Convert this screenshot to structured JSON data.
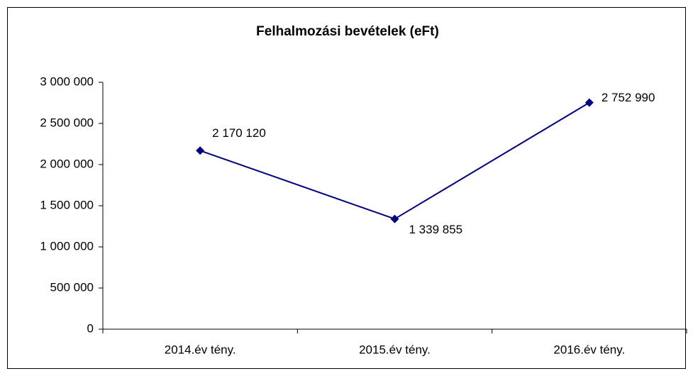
{
  "chart_data": {
    "type": "line",
    "title": "Felhalmozási bevételek (eFt)",
    "categories": [
      "2014.év tény.",
      "2015.év tény.",
      "2016.év tény."
    ],
    "series": [
      {
        "name": "Felhalmozási bevételek",
        "color": "#000080",
        "values": [
          2170120,
          1339855,
          2752990
        ],
        "value_labels": [
          "2 170 120",
          "1 339 855",
          "2 752 990"
        ]
      }
    ],
    "ylim": [
      0,
      3000000
    ],
    "yticks": [
      {
        "value": 0,
        "label": "0"
      },
      {
        "value": 500000,
        "label": "500 000"
      },
      {
        "value": 1000000,
        "label": "1 000 000"
      },
      {
        "value": 1500000,
        "label": "1 500 000"
      },
      {
        "value": 2000000,
        "label": "2 000 000"
      },
      {
        "value": 2500000,
        "label": "2 500 000"
      },
      {
        "value": 3000000,
        "label": "3 000 000"
      }
    ],
    "grid": false
  }
}
